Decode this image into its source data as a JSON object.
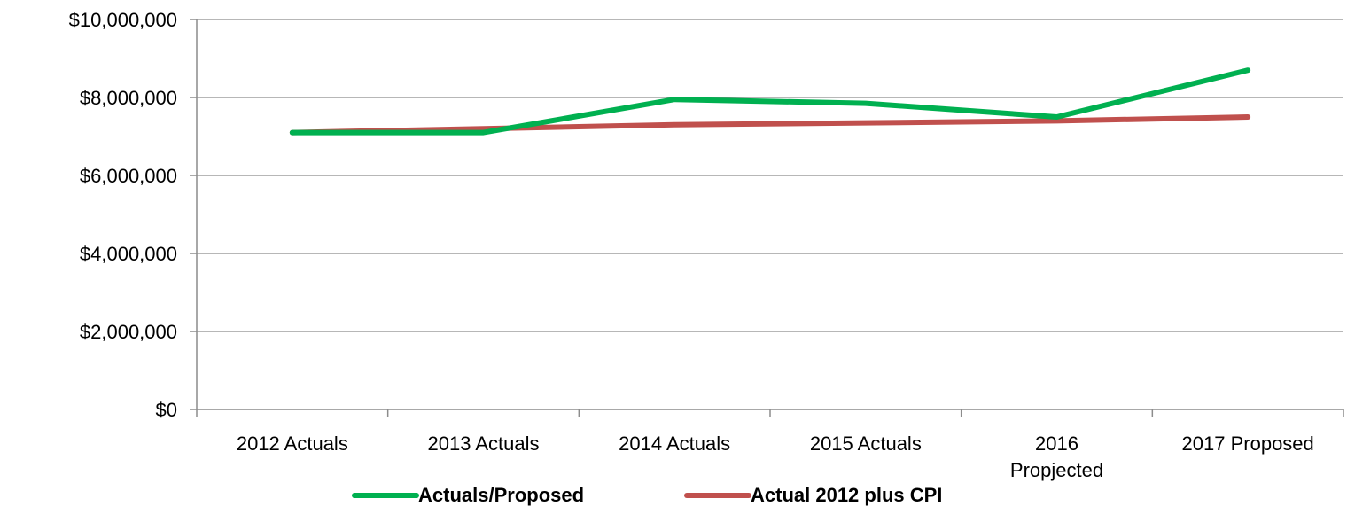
{
  "chart_data": {
    "type": "line",
    "title": "",
    "xlabel": "",
    "ylabel": "",
    "categories": [
      [
        "2012 Actuals"
      ],
      [
        "2013 Actuals"
      ],
      [
        "2014 Actuals"
      ],
      [
        "2015 Actuals"
      ],
      [
        "2016",
        "Propjected"
      ],
      [
        "2017 Proposed"
      ]
    ],
    "ylim": [
      0,
      10000000
    ],
    "yticks": [
      "$0",
      "$2,000,000",
      "$4,000,000",
      "$6,000,000",
      "$8,000,000",
      "$10,000,000"
    ],
    "ytick_values": [
      0,
      2000000,
      4000000,
      6000000,
      8000000,
      10000000
    ],
    "grid": true,
    "legend_position": "bottom",
    "series": [
      {
        "name": "Actuals/Proposed",
        "color": "#00b050",
        "values": [
          7100000,
          7100000,
          7950000,
          7850000,
          7500000,
          8700000
        ]
      },
      {
        "name": "Actual 2012 plus CPI",
        "color": "#c0504d",
        "values": [
          7100000,
          7200000,
          7300000,
          7350000,
          7400000,
          7500000
        ]
      }
    ]
  }
}
